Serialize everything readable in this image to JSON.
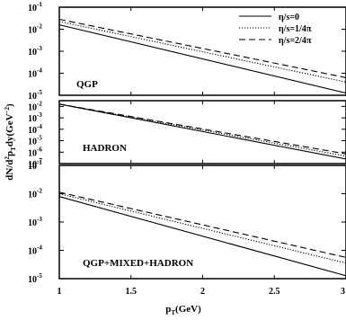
{
  "chart_data": {
    "type": "line",
    "ylabel": "dN/d²p_Tdy(GeV⁻²)",
    "ylabel_parts": [
      "dN/d",
      "2",
      "p",
      "T",
      "dy(GeV",
      "−2",
      ")"
    ],
    "xlabel": "p_T(GeV)",
    "xlabel_parts": [
      "p",
      "T",
      "(GeV)"
    ],
    "xlim": [
      1,
      3
    ],
    "x_ticks": [
      "1",
      "1.5",
      "2",
      "2.5",
      "3"
    ],
    "x_tick_values": [
      1,
      1.5,
      2,
      2.5,
      3
    ],
    "legend": {
      "position": "top-right",
      "entries": [
        "η/s=0",
        "η/s=1/4π",
        "η/s=2/4π"
      ]
    },
    "panels": [
      {
        "label": "QGP",
        "yscale": "log",
        "ylim_exp": [
          -5,
          -1
        ],
        "y_tick_labels": [
          [
            "10",
            "-1"
          ],
          [
            "10",
            "-2"
          ],
          [
            "10",
            "-3"
          ],
          [
            "10",
            "-4"
          ],
          [
            "10",
            "-5"
          ]
        ],
        "y_tick_exps": [
          -1,
          -2,
          -3,
          -4,
          -5
        ],
        "series": [
          {
            "name": "η/s=0",
            "style": "solid",
            "x": [
              1,
              3
            ],
            "y": [
              0.0158,
              1.26e-05
            ]
          },
          {
            "name": "η/s=1/4π",
            "style": "dotted",
            "x": [
              1,
              3
            ],
            "y": [
              0.0224,
              3.98e-05
            ]
          },
          {
            "name": "η/s=2/4π",
            "style": "dashed",
            "x": [
              1,
              3
            ],
            "y": [
              0.0282,
              6.31e-05
            ]
          }
        ]
      },
      {
        "label": "HADRON",
        "yscale": "log",
        "ylim_exp": [
          -7,
          -1.5
        ],
        "y_tick_labels": [
          [
            "10",
            "-2"
          ],
          [
            "10",
            "-3"
          ],
          [
            "10",
            "-4"
          ],
          [
            "10",
            "-5"
          ],
          [
            "10",
            "-6"
          ],
          [
            "10",
            "-7"
          ]
        ],
        "y_tick_exps": [
          -2,
          -3,
          -4,
          -5,
          -6,
          -7
        ],
        "series": [
          {
            "name": "η/s=0",
            "style": "solid",
            "x": [
              1,
              3
            ],
            "y": [
              0.0158,
              2.5e-07
            ]
          },
          {
            "name": "η/s=1/4π",
            "style": "dotted",
            "x": [
              1,
              3
            ],
            "y": [
              0.0158,
              4.5e-07
            ]
          },
          {
            "name": "η/s=2/4π",
            "style": "dashed",
            "x": [
              1,
              3
            ],
            "y": [
              0.0158,
              7.1e-07
            ]
          }
        ]
      },
      {
        "label": "QGP+MIXED+HADRON",
        "yscale": "log",
        "ylim_exp": [
          -5,
          -1
        ],
        "y_tick_labels": [
          [
            "10",
            "-1"
          ],
          [
            "10",
            "-2"
          ],
          [
            "10",
            "-3"
          ],
          [
            "10",
            "-4"
          ],
          [
            "10",
            "-5"
          ]
        ],
        "y_tick_exps": [
          -1,
          -2,
          -3,
          -4,
          -5
        ],
        "series": [
          {
            "name": "η/s=0",
            "style": "solid",
            "x": [
              1,
              3
            ],
            "y": [
              0.0079,
              1.26e-05
            ]
          },
          {
            "name": "η/s=1/4π",
            "style": "dotted",
            "x": [
              1,
              3
            ],
            "y": [
              0.01,
              3.55e-05
            ]
          },
          {
            "name": "η/s=2/4π",
            "style": "dashed",
            "x": [
              1,
              3
            ],
            "y": [
              0.0112,
              5.62e-05
            ]
          }
        ]
      }
    ]
  }
}
